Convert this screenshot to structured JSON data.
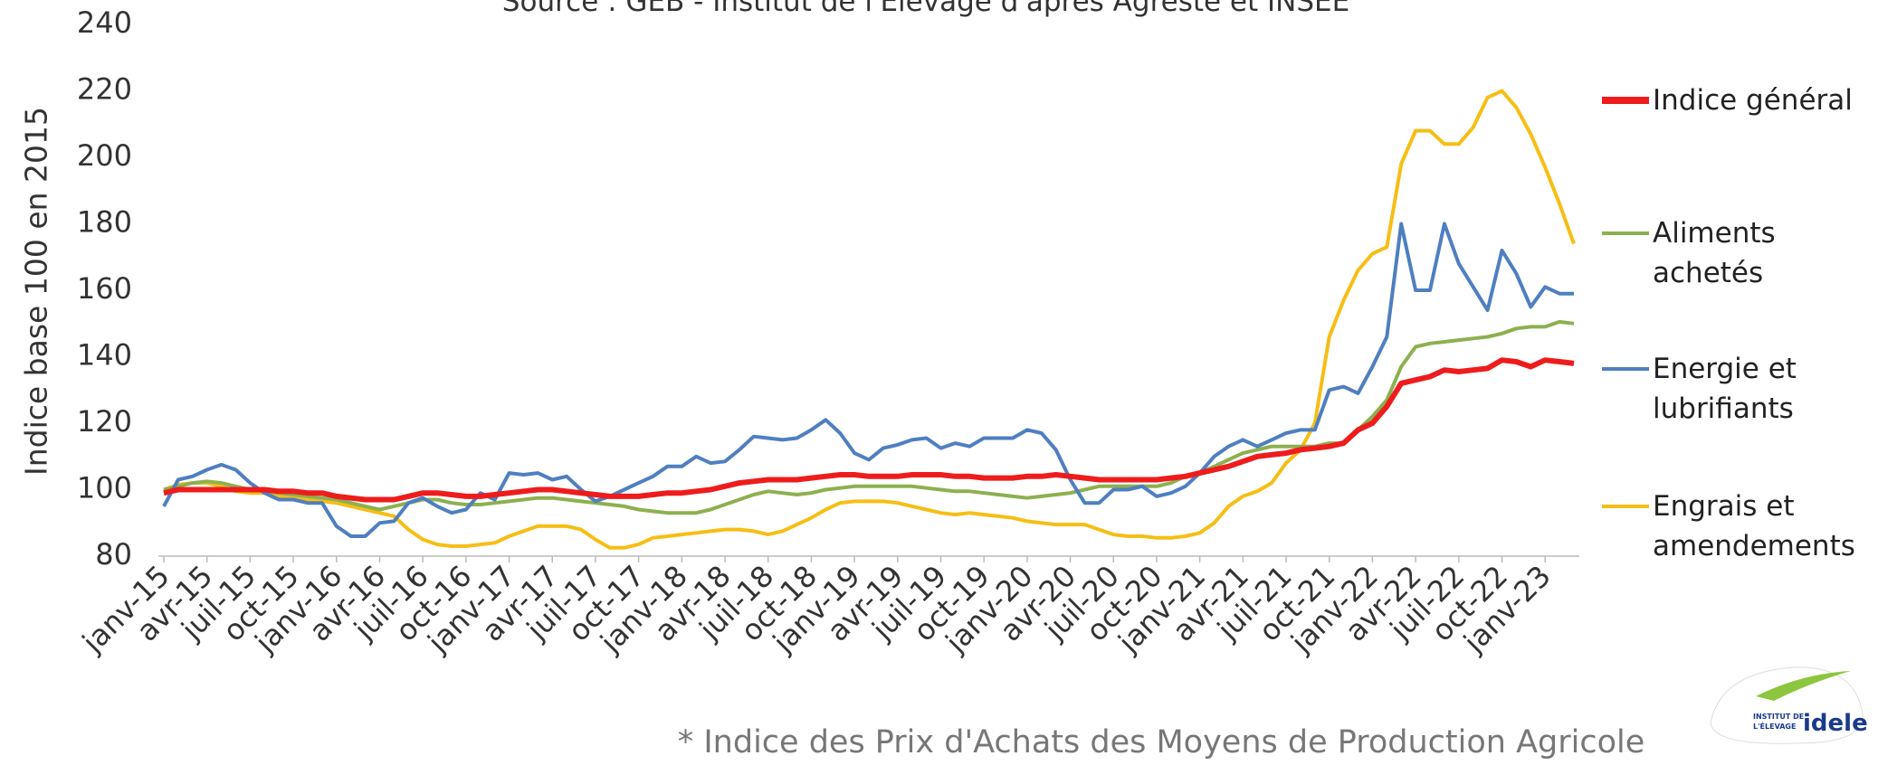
{
  "chart_data": {
    "type": "line",
    "title": "Source : GEB - Institut de l'Elevage d'après Agreste et INSEE",
    "footnote": "* Indice des Prix d'Achats des Moyens de Production Agricole",
    "y_label": "Indice base 100 en 2015",
    "ylim": [
      80,
      240
    ],
    "yticks": [
      80,
      100,
      120,
      140,
      160,
      180,
      200,
      220,
      240
    ],
    "categories": [
      "janv-15",
      null,
      null,
      "avr-15",
      null,
      null,
      "juil-15",
      null,
      null,
      "oct-15",
      null,
      null,
      "janv-16",
      null,
      null,
      "avr-16",
      null,
      null,
      "juil-16",
      null,
      null,
      "oct-16",
      null,
      null,
      "janv-17",
      null,
      null,
      "avr-17",
      null,
      null,
      "juil-17",
      null,
      null,
      "oct-17",
      null,
      null,
      "janv-18",
      null,
      null,
      "avr-18",
      null,
      null,
      "juil-18",
      null,
      null,
      "oct-18",
      null,
      null,
      "janv-19",
      null,
      null,
      "avr-19",
      null,
      null,
      "juil-19",
      null,
      null,
      "oct-19",
      null,
      null,
      "janv-20",
      null,
      null,
      "avr-20",
      null,
      null,
      "juil-20",
      null,
      null,
      "oct-20",
      null,
      null,
      "janv-21",
      null,
      null,
      "avr-21",
      null,
      null,
      "juil-21",
      null,
      null,
      "oct-21",
      null,
      null,
      "janv-22",
      null,
      null,
      "avr-22",
      null,
      null,
      "juil-22",
      null,
      null,
      "oct-22",
      null,
      null,
      "janv-23",
      null,
      null
    ],
    "series": [
      {
        "name": "Indice général",
        "color": "#ee1c1c",
        "values": [
          99,
          100,
          100,
          100,
          100,
          100,
          100,
          100,
          99.5,
          99.5,
          99,
          99,
          98,
          97.5,
          97,
          97,
          97,
          98,
          99,
          99,
          98.5,
          98,
          98,
          98.5,
          99,
          99.5,
          100,
          100,
          99.5,
          99,
          98.5,
          98,
          98,
          98,
          98.5,
          99,
          99,
          99.5,
          100,
          101,
          102,
          102.5,
          103,
          103,
          103,
          103.5,
          104,
          104.5,
          104.5,
          104,
          104,
          104,
          104.5,
          104.5,
          104.5,
          104,
          104,
          103.5,
          103.5,
          103.5,
          104,
          104,
          104.5,
          104,
          103.5,
          103,
          103,
          103,
          103,
          103,
          103.5,
          104,
          105,
          106,
          107,
          108.5,
          110,
          110.5,
          111,
          112,
          112.5,
          113,
          114,
          118,
          120,
          125,
          132,
          133,
          134,
          136,
          135.5,
          136,
          136.5,
          139,
          138.5,
          137,
          139,
          138.5,
          138
        ]
      },
      {
        "name": "Aliments achetés",
        "color": "#8db04f",
        "values": [
          100,
          101,
          102,
          102.5,
          102,
          101,
          100,
          99.5,
          99,
          98.5,
          98,
          97.5,
          97,
          96,
          95,
          94,
          95,
          96,
          97,
          97,
          96,
          95.5,
          95.5,
          96,
          96.5,
          97,
          97.5,
          97.5,
          97,
          96.5,
          96,
          95.5,
          95,
          94,
          93.5,
          93,
          93,
          93,
          94,
          95.5,
          97,
          98.5,
          99.5,
          99,
          98.5,
          99,
          100,
          100.5,
          101,
          101,
          101,
          101,
          101,
          100.5,
          100,
          99.5,
          99.5,
          99,
          98.5,
          98,
          97.5,
          98,
          98.5,
          99,
          100,
          101,
          101,
          101,
          101,
          101,
          102,
          104,
          105,
          107,
          109,
          111,
          112,
          113,
          113,
          113,
          113,
          114,
          114,
          118,
          122,
          127,
          137,
          143,
          144,
          144.5,
          145,
          145.5,
          146,
          147,
          148.5,
          149,
          149,
          150.5,
          150
        ]
      },
      {
        "name": "Energie et lubrifiants",
        "color": "#4e7fc0",
        "values": [
          95,
          103,
          104,
          106,
          107.5,
          106,
          102,
          99,
          97,
          97,
          96,
          96,
          89,
          86,
          86,
          90,
          90.5,
          96,
          97.5,
          95,
          93,
          94,
          99,
          97,
          105,
          104.5,
          105,
          103,
          104,
          100,
          96.5,
          98,
          100,
          102,
          104,
          107,
          107,
          110,
          108,
          108.5,
          112,
          116,
          115.5,
          115,
          115.5,
          118,
          121,
          117,
          111,
          109,
          112.5,
          113.5,
          115,
          115.5,
          112.5,
          114,
          113,
          115.5,
          115.5,
          115.5,
          118,
          117,
          112,
          103,
          96,
          96,
          100,
          100,
          101,
          98,
          99,
          101,
          105,
          110,
          113,
          115,
          113,
          115,
          117,
          118,
          118,
          130,
          131,
          129,
          137,
          146,
          180,
          160,
          160,
          180,
          168,
          161,
          154,
          172,
          165,
          155,
          161,
          159,
          159
        ]
      },
      {
        "name": "Engrais et amendements",
        "color": "#f6be15",
        "values": [
          100,
          101.5,
          102,
          102,
          101,
          99.5,
          99,
          99,
          98,
          97.5,
          97,
          96.5,
          96,
          95,
          94,
          93,
          92,
          88,
          85,
          83.5,
          83,
          83,
          83.5,
          84,
          86,
          87.5,
          89,
          89,
          89,
          88,
          85,
          82.5,
          82.5,
          83.5,
          85.5,
          86,
          86.5,
          87,
          87.5,
          88,
          88,
          87.5,
          86.5,
          87.5,
          89.5,
          91.5,
          94,
          96,
          96.5,
          96.5,
          96.5,
          96,
          95,
          94,
          93,
          92.5,
          93,
          92.5,
          92,
          91.5,
          90.5,
          90,
          89.5,
          89.5,
          89.5,
          88,
          86.5,
          86,
          86,
          85.5,
          85.5,
          86,
          87,
          90,
          95,
          98,
          99.5,
          102,
          108,
          112,
          120,
          146,
          157,
          166,
          171,
          173,
          198,
          208,
          208,
          204,
          204,
          209,
          218,
          220,
          215,
          207,
          197,
          186,
          174
        ]
      }
    ]
  },
  "logo": {
    "line1": "INSTITUT DE",
    "line2": "L'ÉLEVAGE",
    "brand": "idele"
  }
}
